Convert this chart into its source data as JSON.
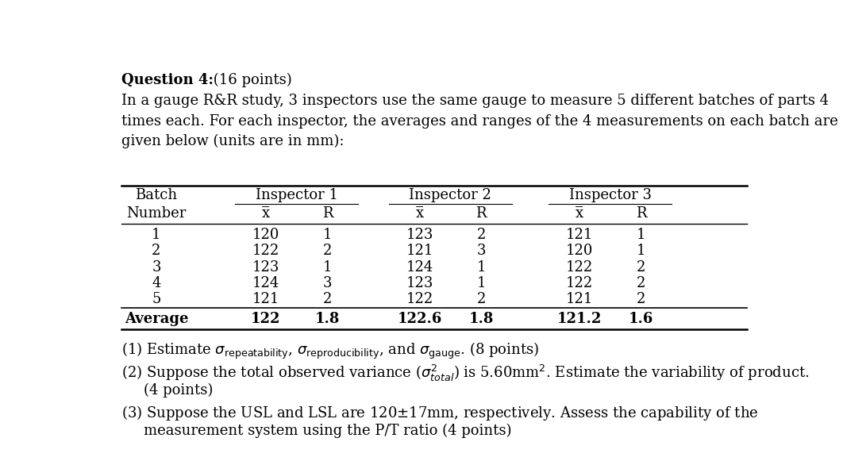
{
  "title_bold": "Question 4:",
  "title_normal": " (16 points)",
  "intro_lines": [
    "In a gauge R&R study, 3 inspectors use the same gauge to measure 5 different batches of parts 4",
    "times each. For each inspector, the averages and ranges of the 4 measurements on each batch are",
    "given below (units are in mm):"
  ],
  "table": {
    "rows": [
      [
        "1",
        "120",
        "1",
        "123",
        "2",
        "121",
        "1"
      ],
      [
        "2",
        "122",
        "2",
        "121",
        "3",
        "120",
        "1"
      ],
      [
        "3",
        "123",
        "1",
        "124",
        "1",
        "122",
        "2"
      ],
      [
        "4",
        "124",
        "3",
        "123",
        "1",
        "122",
        "2"
      ],
      [
        "5",
        "121",
        "2",
        "122",
        "2",
        "121",
        "2"
      ]
    ],
    "avg_row": [
      "Average",
      "122",
      "1.8",
      "122.6",
      "1.8",
      "121.2",
      "1.6"
    ]
  },
  "bg_color": "#ffffff",
  "text_color": "#000000",
  "fontsize": 13,
  "fontfamily": "DejaVu Serif"
}
